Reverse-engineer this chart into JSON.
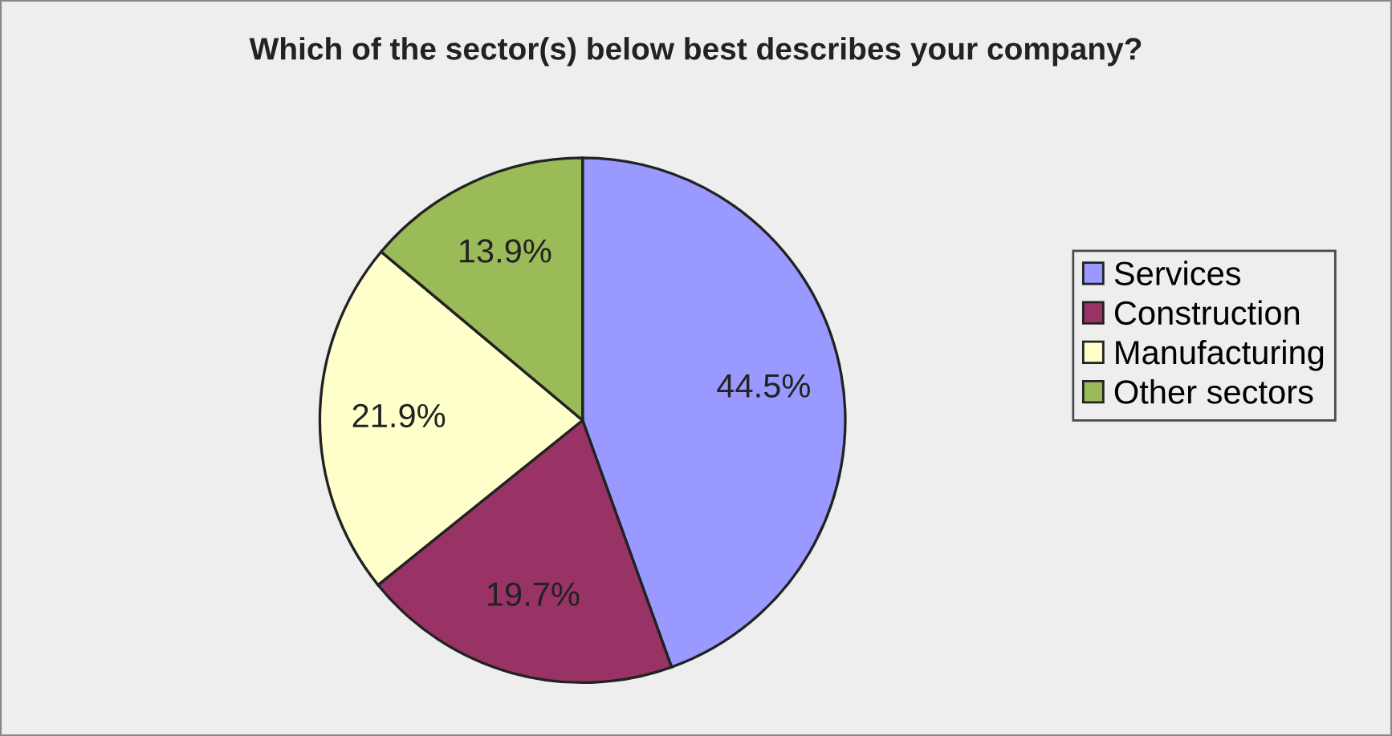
{
  "chart_data": {
    "type": "pie",
    "title": "Which of the sector(s) below best describes your company?",
    "categories": [
      "Services",
      "Construction",
      "Manufacturing",
      "Other sectors"
    ],
    "values": [
      44.5,
      19.7,
      21.9,
      13.9
    ],
    "colors": [
      "#9999ff",
      "#993366",
      "#ffffcc",
      "#9bbb59"
    ],
    "value_labels": [
      "44.5%",
      "19.7%",
      "21.9%",
      "13.9%"
    ],
    "legend": "right"
  }
}
